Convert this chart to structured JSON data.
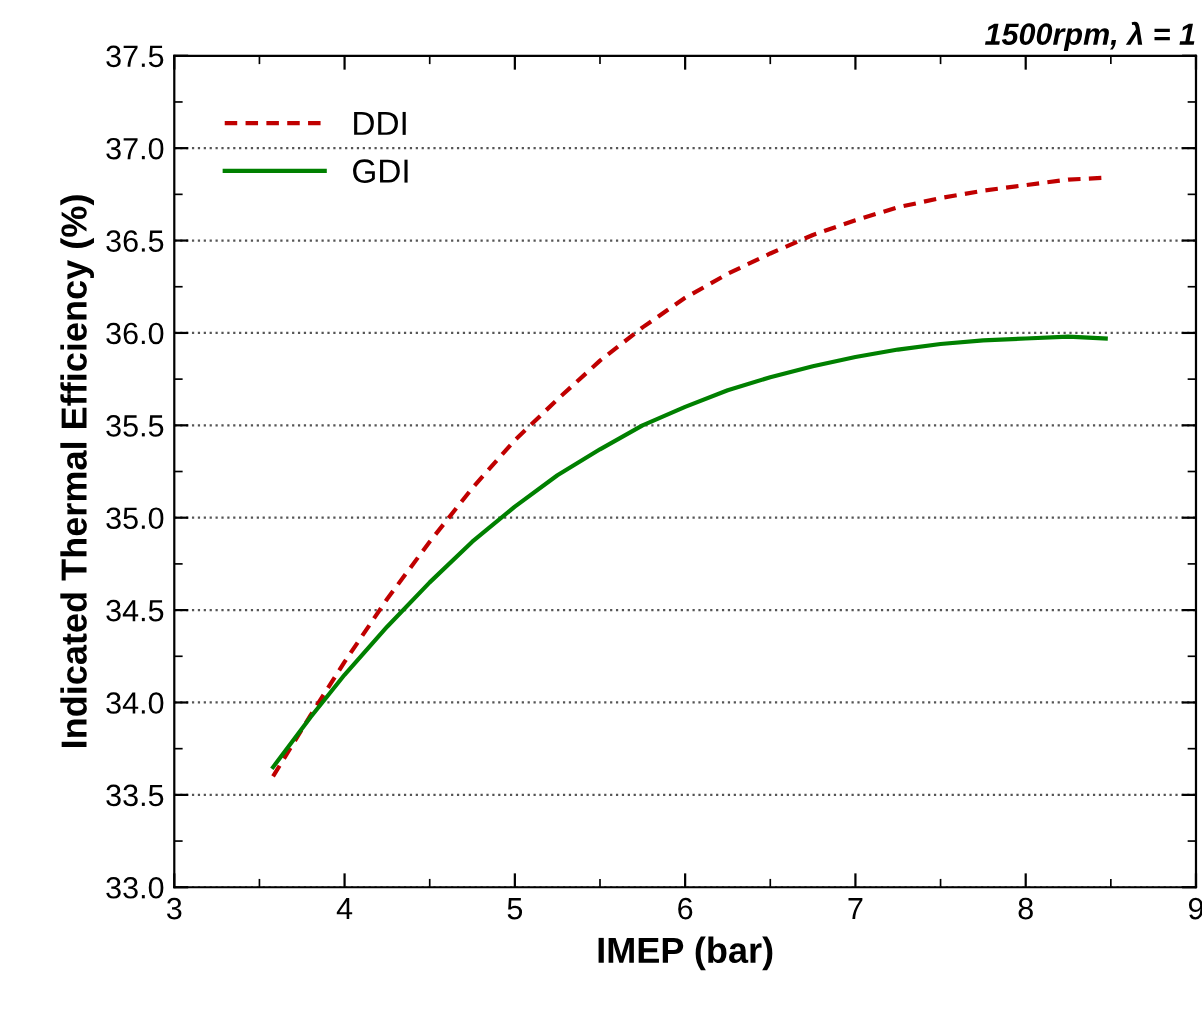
{
  "chart_data": {
    "type": "line",
    "title": "1500rpm, λ = 1",
    "xlabel": "IMEP (bar)",
    "ylabel": "Indicated Thermal Efficiency (%)",
    "xlim": [
      3,
      9
    ],
    "xticks": [
      3,
      4,
      5,
      6,
      7,
      8,
      9
    ],
    "ylim": [
      33,
      37.5
    ],
    "yticks": [
      {
        "value": 33,
        "label": "33.0"
      },
      {
        "value": 33.5,
        "label": "33.5"
      },
      {
        "value": 34,
        "label": "34.0"
      },
      {
        "value": 34.5,
        "label": "34.5"
      },
      {
        "value": 35,
        "label": "35.0"
      },
      {
        "value": 35.5,
        "label": "35.5"
      },
      {
        "value": 36,
        "label": "36.0"
      },
      {
        "value": 36.5,
        "label": "36.5"
      },
      {
        "value": 37,
        "label": "37.0"
      },
      {
        "value": 37.5,
        "label": "37.5"
      }
    ],
    "grid": "y",
    "legend": "top left",
    "marker": "none",
    "series": [
      {
        "name": "DDI",
        "color": "#c00000",
        "line_style": "dashed",
        "x": [
          3.58,
          3.8,
          4.0,
          4.25,
          4.5,
          4.75,
          5.0,
          5.25,
          5.5,
          5.75,
          6.0,
          6.25,
          6.5,
          6.75,
          7.0,
          7.25,
          7.5,
          7.75,
          8.0,
          8.25,
          8.47
        ],
        "values": [
          33.6,
          33.93,
          34.22,
          34.56,
          34.87,
          35.16,
          35.42,
          35.64,
          35.85,
          36.03,
          36.19,
          36.32,
          36.43,
          36.53,
          36.61,
          36.68,
          36.73,
          36.77,
          36.8,
          36.83,
          36.84
        ]
      },
      {
        "name": "GDI",
        "color": "#008000",
        "line_style": "solid",
        "x": [
          3.58,
          3.8,
          4.0,
          4.25,
          4.5,
          4.75,
          5.0,
          5.25,
          5.5,
          5.75,
          6.0,
          6.25,
          6.5,
          6.75,
          7.0,
          7.25,
          7.5,
          7.75,
          8.0,
          8.25,
          8.47
        ],
        "values": [
          33.65,
          33.92,
          34.15,
          34.41,
          34.65,
          34.87,
          35.06,
          35.23,
          35.37,
          35.5,
          35.6,
          35.69,
          35.76,
          35.82,
          35.87,
          35.91,
          35.94,
          35.96,
          35.97,
          35.98,
          35.97
        ]
      }
    ]
  }
}
